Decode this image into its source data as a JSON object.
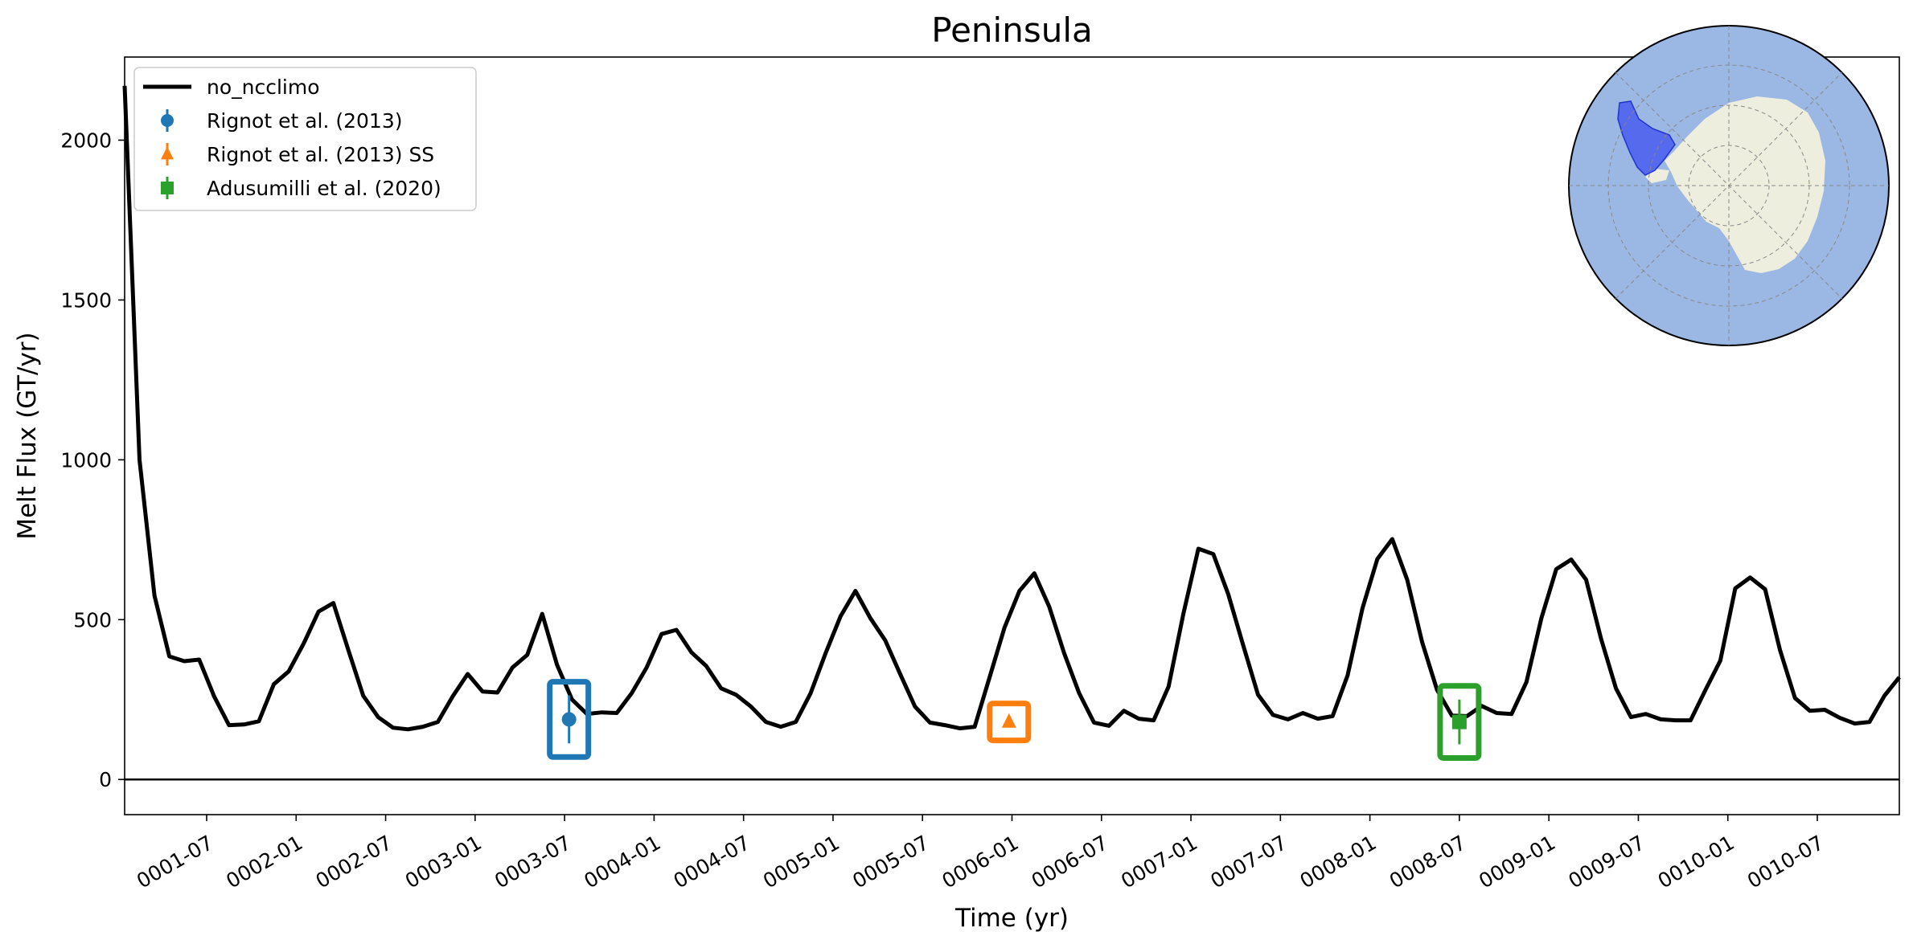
{
  "chart_data": {
    "type": "line",
    "title": "Peninsula",
    "xlabel": "Time (yr)",
    "ylabel": "Melt Flux (GT/yr)",
    "ylim": [
      -110,
      2260
    ],
    "yticks": [
      0,
      500,
      1000,
      1500,
      2000
    ],
    "x_unit": "months since 0001-01",
    "xlim": [
      0.5,
      119.5
    ],
    "xticks": [
      {
        "label": "0001-07",
        "value": 6
      },
      {
        "label": "0002-01",
        "value": 12
      },
      {
        "label": "0002-07",
        "value": 18
      },
      {
        "label": "0003-01",
        "value": 24
      },
      {
        "label": "0003-07",
        "value": 30
      },
      {
        "label": "0004-01",
        "value": 36
      },
      {
        "label": "0004-07",
        "value": 42
      },
      {
        "label": "0005-01",
        "value": 48
      },
      {
        "label": "0005-07",
        "value": 54
      },
      {
        "label": "0006-01",
        "value": 60
      },
      {
        "label": "0006-07",
        "value": 66
      },
      {
        "label": "0007-01",
        "value": 72
      },
      {
        "label": "0007-07",
        "value": 78
      },
      {
        "label": "0008-01",
        "value": 84
      },
      {
        "label": "0008-07",
        "value": 90
      },
      {
        "label": "0009-01",
        "value": 96
      },
      {
        "label": "0009-07",
        "value": 102
      },
      {
        "label": "0010-01",
        "value": 108
      },
      {
        "label": "0010-07",
        "value": 114
      }
    ],
    "hline": 0,
    "series": [
      {
        "name": "no_ncclimo",
        "color": "#000000",
        "x_start": 0.5,
        "x_step": 1,
        "values": [
          2170,
          1000,
          575,
          385,
          370,
          375,
          260,
          170,
          172,
          182,
          298,
          338,
          425,
          525,
          552,
          405,
          262,
          195,
          162,
          157,
          165,
          180,
          260,
          330,
          275,
          272,
          350,
          390,
          518,
          358,
          250,
          205,
          210,
          208,
          270,
          350,
          455,
          468,
          398,
          355,
          285,
          265,
          228,
          180,
          165,
          180,
          270,
          395,
          510,
          590,
          505,
          435,
          330,
          228,
          178,
          170,
          160,
          165,
          320,
          475,
          590,
          645,
          540,
          395,
          270,
          178,
          168,
          215,
          190,
          185,
          290,
          520,
          722,
          705,
          580,
          420,
          265,
          202,
          188,
          208,
          190,
          198,
          325,
          535,
          690,
          752,
          625,
          430,
          280,
          200,
          198,
          230,
          208,
          205,
          305,
          505,
          658,
          688,
          625,
          440,
          285,
          195,
          205,
          188,
          185,
          185,
          280,
          372,
          598,
          632,
          595,
          405,
          255,
          215,
          218,
          193,
          175,
          180,
          262,
          320
        ]
      }
    ],
    "observations": [
      {
        "name": "Rignot et al. (2013)",
        "x": 30.3,
        "y": 188,
        "yerr": 75,
        "marker": "circle",
        "color": "#1f77b4"
      },
      {
        "name": "Rignot et al. (2013) SS",
        "x": 59.8,
        "y": 180,
        "yerr": 15,
        "marker": "triangle",
        "color": "#ff7f0e"
      },
      {
        "name": "Adusumilli et al. (2020)",
        "x": 90.0,
        "y": 180,
        "yerr": 70,
        "marker": "square",
        "color": "#2ca02c"
      }
    ],
    "legend": {
      "position": "top-left",
      "entries": [
        "no_ncclimo",
        "Rignot et al. (2013)",
        "Rignot et al. (2013) SS",
        "Adusumilli et al. (2020)"
      ]
    },
    "inset": {
      "type": "map",
      "position": "top-right",
      "description": "Antarctica polar map with Peninsula region highlighted",
      "ocean_color": "#9ab8e3",
      "land_color": "#eeeede",
      "region_color": "#4a5cf0"
    }
  }
}
